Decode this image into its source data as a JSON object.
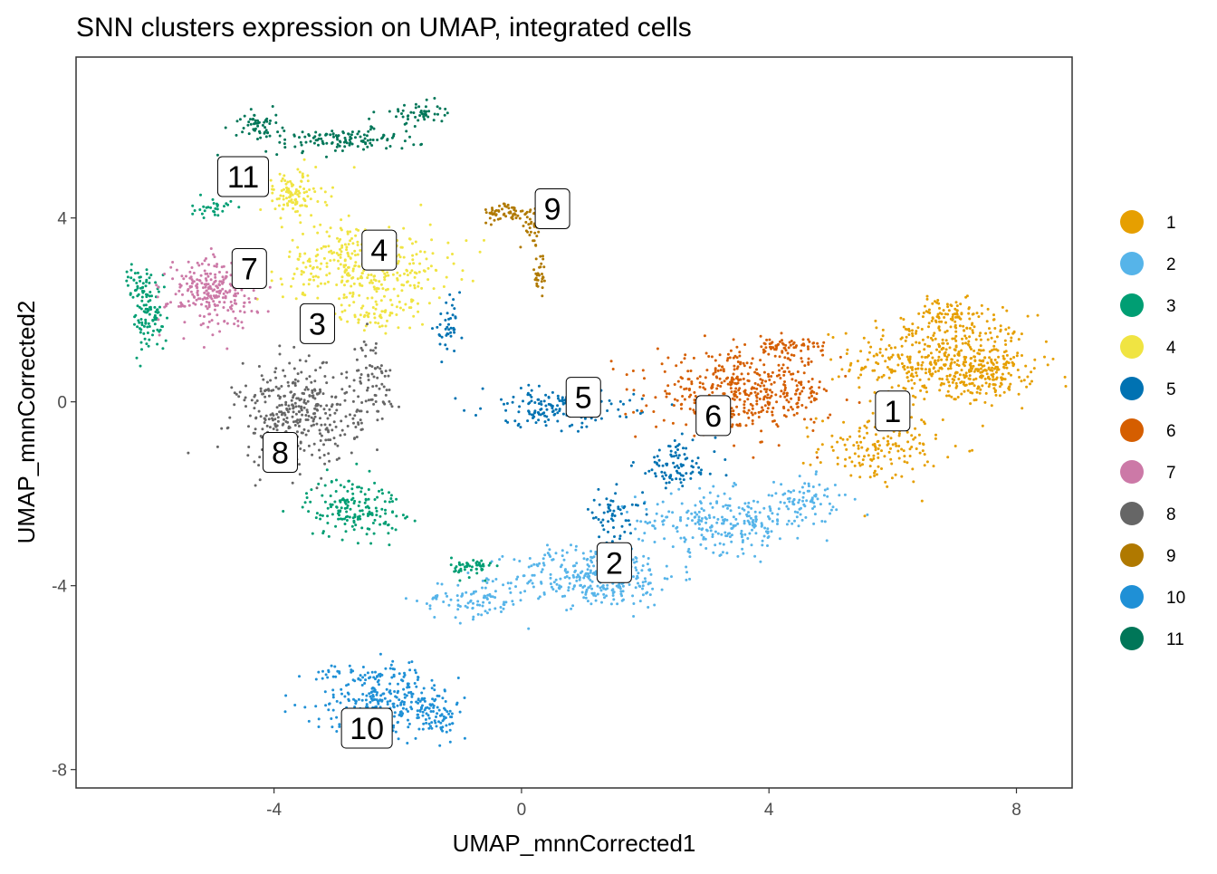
{
  "chart_data": {
    "type": "scatter",
    "title": "SNN clusters expression on UMAP, integrated cells",
    "xlabel": "UMAP_mnnCorrected1",
    "ylabel": "UMAP_mnnCorrected2",
    "xlim": [
      -7.2,
      8.9
    ],
    "ylim": [
      -8.4,
      7.5
    ],
    "x_ticks": [
      {
        "value": -4,
        "label": "-4"
      },
      {
        "value": 0,
        "label": "0"
      },
      {
        "value": 4,
        "label": "4"
      },
      {
        "value": 8,
        "label": "8"
      }
    ],
    "y_ticks": [
      {
        "value": -8,
        "label": "-8"
      },
      {
        "value": -4,
        "label": "-4"
      },
      {
        "value": 0,
        "label": "0"
      },
      {
        "value": 4,
        "label": "4"
      }
    ],
    "grid": false,
    "legend_position": "right",
    "series": [
      {
        "name": "1",
        "color": "#E69F00",
        "label": "1",
        "label_pos": [
          6.0,
          -0.2
        ],
        "blobs": [
          [
            6.8,
            0.9,
            1.3,
            0.9,
            450
          ],
          [
            7.6,
            0.6,
            0.6,
            0.45,
            120
          ],
          [
            5.8,
            -1.0,
            0.9,
            0.7,
            160
          ],
          [
            6.9,
            1.9,
            0.6,
            0.3,
            80
          ]
        ]
      },
      {
        "name": "2",
        "color": "#56B4E9",
        "label": "2",
        "label_pos": [
          1.5,
          -3.5
        ],
        "blobs": [
          [
            1.2,
            -3.8,
            1.2,
            0.6,
            320
          ],
          [
            3.3,
            -2.6,
            1.3,
            0.6,
            260
          ],
          [
            -0.8,
            -4.3,
            0.8,
            0.4,
            90
          ],
          [
            4.6,
            -2.1,
            0.5,
            0.4,
            70
          ]
        ]
      },
      {
        "name": "3",
        "color": "#009E73",
        "label": "3",
        "label_pos": [
          -3.3,
          1.7
        ],
        "blobs": [
          [
            -6.0,
            1.8,
            0.25,
            0.7,
            90
          ],
          [
            -6.2,
            2.6,
            0.2,
            0.3,
            40
          ],
          [
            -2.7,
            -2.3,
            0.7,
            0.6,
            170
          ],
          [
            -0.8,
            -3.6,
            0.3,
            0.2,
            50
          ],
          [
            -5.0,
            4.2,
            0.3,
            0.2,
            30
          ]
        ]
      },
      {
        "name": "4",
        "color": "#F0E442",
        "label": "4",
        "label_pos": [
          -2.3,
          3.3
        ],
        "blobs": [
          [
            -2.5,
            3.0,
            1.2,
            0.8,
            380
          ],
          [
            -3.7,
            4.5,
            0.5,
            0.5,
            110
          ],
          [
            -2.3,
            1.9,
            0.5,
            0.3,
            60
          ]
        ]
      },
      {
        "name": "5",
        "color": "#0072B2",
        "label": "5",
        "label_pos": [
          1.0,
          0.1
        ],
        "blobs": [
          [
            0.6,
            -0.1,
            1.1,
            0.4,
            180
          ],
          [
            2.5,
            -1.4,
            0.6,
            0.5,
            90
          ],
          [
            1.5,
            -2.5,
            0.4,
            0.5,
            60
          ],
          [
            -1.2,
            1.6,
            0.2,
            0.5,
            40
          ]
        ]
      },
      {
        "name": "6",
        "color": "#D55E00",
        "label": "6",
        "label_pos": [
          3.1,
          -0.3
        ],
        "blobs": [
          [
            3.6,
            0.2,
            1.3,
            0.75,
            440
          ],
          [
            4.3,
            1.2,
            0.6,
            0.2,
            70
          ]
        ]
      },
      {
        "name": "7",
        "color": "#CC79A7",
        "label": "7",
        "label_pos": [
          -4.4,
          2.9
        ],
        "blobs": [
          [
            -5.0,
            2.4,
            0.65,
            0.7,
            250
          ]
        ]
      },
      {
        "name": "8",
        "color": "#666666",
        "label": "8",
        "label_pos": [
          -3.9,
          -1.1
        ],
        "blobs": [
          [
            -3.6,
            -0.3,
            0.9,
            1.0,
            380
          ],
          [
            -2.4,
            0.5,
            0.3,
            0.8,
            70
          ]
        ]
      },
      {
        "name": "9",
        "color": "#B07900",
        "label": "9",
        "label_pos": [
          0.5,
          4.2
        ],
        "blobs": [
          [
            -0.2,
            4.1,
            0.4,
            0.2,
            60
          ],
          [
            0.2,
            3.8,
            0.15,
            0.4,
            40
          ],
          [
            0.3,
            2.8,
            0.12,
            0.4,
            30
          ]
        ]
      },
      {
        "name": "10",
        "color": "#1F90D6",
        "label": "10",
        "label_pos": [
          -2.5,
          -7.1
        ],
        "blobs": [
          [
            -2.2,
            -6.5,
            1.0,
            0.6,
            260
          ],
          [
            -2.6,
            -5.9,
            0.8,
            0.15,
            40
          ],
          [
            -1.4,
            -6.8,
            0.3,
            0.4,
            60
          ]
        ]
      },
      {
        "name": "11",
        "color": "#007658",
        "label": "11",
        "label_pos": [
          -4.5,
          4.9
        ],
        "blobs": [
          [
            -2.9,
            5.7,
            1.1,
            0.25,
            130
          ],
          [
            -1.7,
            6.3,
            0.4,
            0.2,
            50
          ],
          [
            -4.3,
            6.0,
            0.3,
            0.3,
            50
          ],
          [
            -4.5,
            5.2,
            0.3,
            0.15,
            30
          ]
        ]
      }
    ]
  }
}
